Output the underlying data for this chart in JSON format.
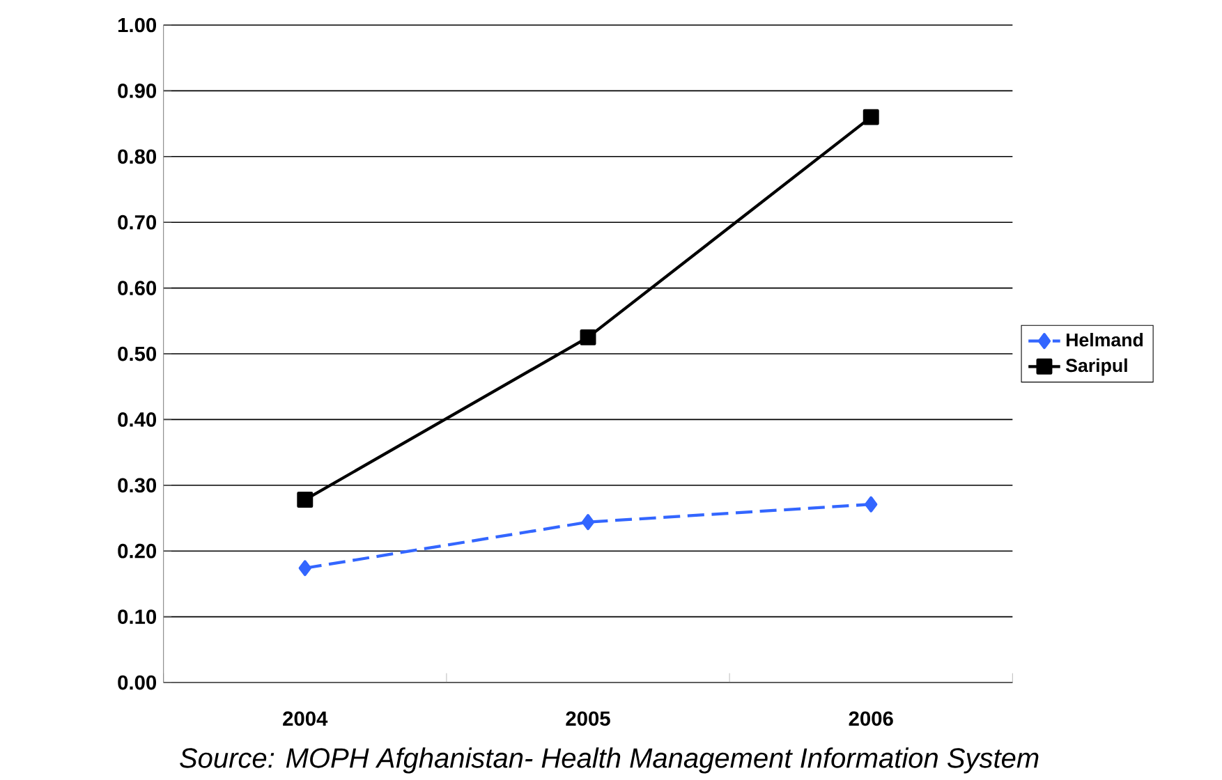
{
  "chart_data": {
    "type": "line",
    "categories": [
      "2004",
      "2005",
      "2006"
    ],
    "series": [
      {
        "name": "Helmand",
        "color": "#3366ff",
        "values": [
          0.174,
          0.244,
          0.271
        ],
        "marker": "diamond",
        "line_style": "dashed"
      },
      {
        "name": "Saripul",
        "color": "#000000",
        "values": [
          0.278,
          0.525,
          0.86
        ],
        "marker": "square",
        "line_style": "solid"
      }
    ],
    "ylim": [
      0,
      1
    ],
    "yticks": [
      {
        "value": 0,
        "label": "0.00"
      },
      {
        "value": 0.1,
        "label": "0.10"
      },
      {
        "value": 0.2,
        "label": "0.20"
      },
      {
        "value": 0.3,
        "label": "0.30"
      },
      {
        "value": 0.4,
        "label": "0.40"
      },
      {
        "value": 0.5,
        "label": "0.50"
      },
      {
        "value": 0.6,
        "label": "0.60"
      },
      {
        "value": 0.7,
        "label": "0.70"
      },
      {
        "value": 0.8,
        "label": "0.80"
      },
      {
        "value": 0.9,
        "label": "0.90"
      },
      {
        "value": 1,
        "label": "1.00"
      }
    ],
    "grid": "y",
    "legend": "right",
    "annotations": [
      "Source: MOPH Afghanistan- Health Management Information System"
    ]
  }
}
